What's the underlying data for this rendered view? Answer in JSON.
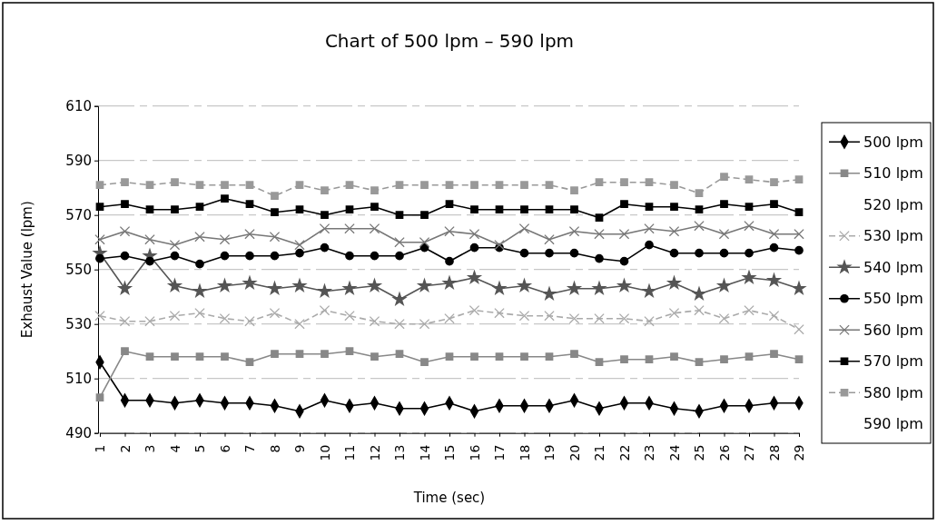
{
  "chart_data": {
    "type": "line",
    "title": "Chart of 500 lpm – 590 lpm",
    "xlabel": "Time (sec)",
    "ylabel": "Exhaust Value (lpm)",
    "categories": [
      "1",
      "2",
      "3",
      "4",
      "5",
      "6",
      "7",
      "8",
      "9",
      "10",
      "11",
      "12",
      "13",
      "14",
      "15",
      "16",
      "17",
      "18",
      "19",
      "20",
      "21",
      "22",
      "23",
      "24",
      "25",
      "26",
      "27",
      "28",
      "29"
    ],
    "ylim": [
      490,
      610
    ],
    "yticks": [
      490,
      510,
      530,
      550,
      570,
      590,
      610
    ],
    "grid": "y",
    "legend": "right",
    "series": [
      {
        "name": "500 lpm",
        "color": "#000000",
        "marker": "diamond",
        "line_style": "solid",
        "values": [
          516,
          502,
          502,
          501,
          502,
          501,
          501,
          500,
          498,
          502,
          500,
          501,
          499,
          499,
          501,
          498,
          500,
          500,
          500,
          502,
          499,
          501,
          501,
          499,
          498,
          500,
          500,
          501,
          501
        ]
      },
      {
        "name": "510 lpm",
        "color": "#888888",
        "marker": "square",
        "line_style": "solid",
        "values": [
          503,
          520,
          518,
          518,
          518,
          518,
          516,
          519,
          519,
          519,
          520,
          518,
          519,
          516,
          518,
          518,
          518,
          518,
          518,
          519,
          516,
          517,
          517,
          518,
          516,
          517,
          518,
          519,
          517
        ]
      },
      {
        "name": "520 lpm",
        "values": [
          null,
          null,
          null,
          null,
          null,
          null,
          null,
          null,
          null,
          null,
          null,
          null,
          null,
          null,
          null,
          null,
          null,
          null,
          null,
          null,
          null,
          null,
          null,
          null,
          null,
          null,
          null,
          null,
          null
        ]
      },
      {
        "name": "530 lpm",
        "color": "#aaaaaa",
        "marker": "cross",
        "line_style": "dashed",
        "values": [
          533,
          531,
          531,
          533,
          534,
          532,
          531,
          534,
          530,
          535,
          533,
          531,
          530,
          530,
          532,
          535,
          534,
          533,
          533,
          532,
          532,
          532,
          531,
          534,
          535,
          532,
          535,
          533,
          528
        ]
      },
      {
        "name": "540 lpm",
        "color": "#555555",
        "marker": "star",
        "line_style": "solid",
        "values": [
          556,
          543,
          555,
          544,
          542,
          544,
          545,
          543,
          544,
          542,
          543,
          544,
          539,
          544,
          545,
          547,
          543,
          544,
          541,
          543,
          543,
          544,
          542,
          545,
          541,
          544,
          547,
          546,
          543
        ]
      },
      {
        "name": "550 lpm",
        "color": "#000000",
        "marker": "circle",
        "line_style": "solid",
        "values": [
          554,
          555,
          553,
          555,
          552,
          555,
          555,
          555,
          556,
          558,
          555,
          555,
          555,
          558,
          553,
          558,
          558,
          556,
          556,
          556,
          554,
          553,
          559,
          556,
          556,
          556,
          556,
          558,
          557
        ]
      },
      {
        "name": "560 lpm",
        "color": "#777777",
        "marker": "cross",
        "line_style": "solid",
        "values": [
          561,
          564,
          561,
          559,
          562,
          561,
          563,
          562,
          559,
          565,
          565,
          565,
          560,
          560,
          564,
          563,
          559,
          565,
          561,
          564,
          563,
          563,
          565,
          564,
          566,
          563,
          566,
          563,
          563
        ]
      },
      {
        "name": "570 lpm",
        "color": "#000000",
        "marker": "square",
        "line_style": "solid",
        "values": [
          573,
          574,
          572,
          572,
          573,
          576,
          574,
          571,
          572,
          570,
          572,
          573,
          570,
          570,
          574,
          572,
          572,
          572,
          572,
          572,
          569,
          574,
          573,
          573,
          572,
          574,
          573,
          574,
          571
        ]
      },
      {
        "name": "580 lpm",
        "color": "#999999",
        "marker": "square",
        "line_style": "dashed",
        "values": [
          581,
          582,
          581,
          582,
          581,
          581,
          581,
          577,
          581,
          579,
          581,
          579,
          581,
          581,
          581,
          581,
          581,
          581,
          581,
          579,
          582,
          582,
          582,
          581,
          578,
          584,
          583,
          582,
          583
        ]
      },
      {
        "name": "590 lpm",
        "values": [
          null,
          null,
          null,
          null,
          null,
          null,
          null,
          null,
          null,
          null,
          null,
          null,
          null,
          null,
          null,
          null,
          null,
          null,
          null,
          null,
          null,
          null,
          null,
          null,
          null,
          null,
          null,
          null,
          null
        ]
      }
    ]
  }
}
